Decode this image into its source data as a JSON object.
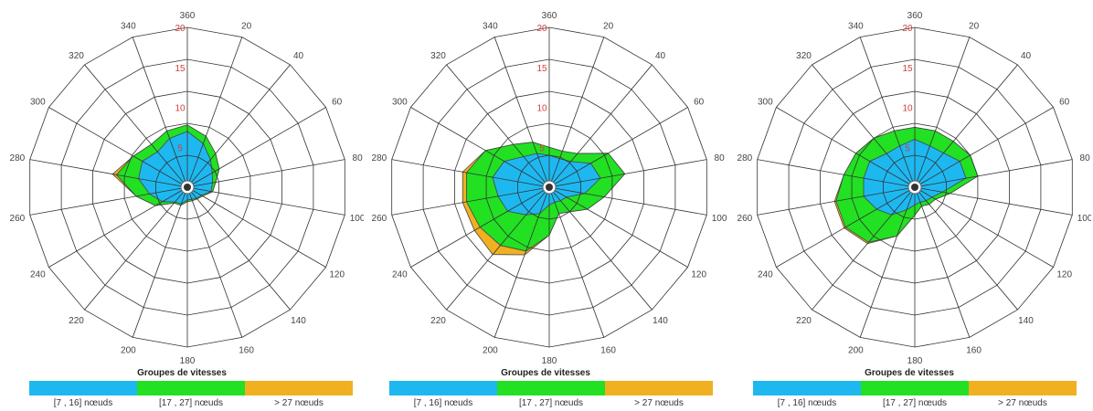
{
  "chart_data": [
    {
      "type": "polar-stacked-area",
      "directions": [
        360,
        20,
        40,
        60,
        80,
        100,
        120,
        140,
        160,
        180,
        200,
        220,
        240,
        260,
        280,
        300,
        320,
        340
      ],
      "radial_ticks": [
        5,
        10,
        15,
        20
      ],
      "rmax": 20,
      "series": [
        {
          "name": "[7 , 16] nœuds",
          "color": "#1eb8f0",
          "values": [
            7,
            5.8,
            4.5,
            3.6,
            3.2,
            3,
            2,
            1.8,
            1.6,
            1.6,
            2.2,
            2.4,
            3.6,
            4.8,
            6.2,
            6.5,
            5.8,
            6.5
          ]
        },
        {
          "name": "[17 , 27] nœuds",
          "color": "#22e022",
          "values": [
            7.8,
            6.8,
            5.5,
            4.6,
            3.6,
            3.2,
            2.2,
            1.9,
            1.8,
            1.8,
            2.4,
            2.6,
            4.6,
            6.5,
            9,
            7.8,
            7,
            7.5
          ]
        },
        {
          "name": "> 27 nœuds",
          "color": "#f0b020",
          "values": [
            7.8,
            6.8,
            5.5,
            4.6,
            3.6,
            3.2,
            2.2,
            1.9,
            1.8,
            1.8,
            2.4,
            2.6,
            4.6,
            6.5,
            9.5,
            7.8,
            7,
            7.5
          ]
        }
      ]
    },
    {
      "type": "polar-stacked-area",
      "directions": [
        360,
        20,
        40,
        60,
        80,
        100,
        120,
        140,
        160,
        180,
        200,
        220,
        240,
        260,
        280,
        300,
        320,
        340
      ],
      "radial_ticks": [
        5,
        10,
        15,
        20
      ],
      "rmax": 20,
      "series": [
        {
          "name": "[7 , 16] nœuds",
          "color": "#1eb8f0",
          "values": [
            4,
            3.8,
            4.2,
            6,
            6.5,
            4.5,
            2.5,
            2.2,
            2,
            2.2,
            3.5,
            4.5,
            6,
            6.5,
            7.2,
            6.5,
            5,
            4.5
          ]
        },
        {
          "name": "[17 , 27] nœuds",
          "color": "#22e022",
          "values": [
            5,
            4.8,
            5.5,
            8.5,
            9.6,
            7,
            5.5,
            4,
            3.5,
            6,
            8.5,
            9.5,
            10,
            10.5,
            10.5,
            9.2,
            7,
            6
          ]
        },
        {
          "name": "> 27 nœuds",
          "color": "#f0b020",
          "values": [
            5,
            4.8,
            5.5,
            8.5,
            9.6,
            7,
            5.5,
            4,
            3.5,
            6,
            9,
            11,
            10.8,
            11,
            11,
            9.2,
            7,
            6
          ]
        }
      ]
    },
    {
      "type": "polar-stacked-area",
      "directions": [
        360,
        20,
        40,
        60,
        80,
        100,
        120,
        140,
        160,
        180,
        200,
        220,
        240,
        260,
        280,
        300,
        320,
        340
      ],
      "radial_ticks": [
        5,
        10,
        15,
        20
      ],
      "rmax": 20,
      "series": [
        {
          "name": "[7 , 16] nœuds",
          "color": "#1eb8f0",
          "values": [
            6,
            5.5,
            5.6,
            6.5,
            6.5,
            3.5,
            2.5,
            2.2,
            2,
            2.2,
            3,
            4.5,
            5.5,
            6.5,
            6.5,
            6.5,
            5.5,
            5.5
          ]
        },
        {
          "name": "[17 , 27] nœuds",
          "color": "#22e022",
          "values": [
            7.5,
            7.5,
            7.5,
            8,
            8,
            4.5,
            3,
            2.8,
            2.5,
            3.5,
            6.5,
            9,
            10,
            10,
            9,
            8.5,
            8,
            7.5
          ]
        },
        {
          "name": "> 27 nœuds",
          "color": "#f0b020",
          "values": [
            7.5,
            7.5,
            7.5,
            8,
            8,
            4.5,
            3,
            2.8,
            2.5,
            3.5,
            6.5,
            9.2,
            10.2,
            10.2,
            9,
            8.5,
            8,
            7.5
          ]
        }
      ]
    }
  ],
  "legend": {
    "title": "Groupes de vitesses",
    "items": [
      {
        "label": "[7 , 16] nœuds",
        "color": "#1eb8f0"
      },
      {
        "label": "[17 , 27] nœuds",
        "color": "#22e022"
      },
      {
        "label": "> 27 nœuds",
        "color": "#f0b020"
      }
    ]
  }
}
